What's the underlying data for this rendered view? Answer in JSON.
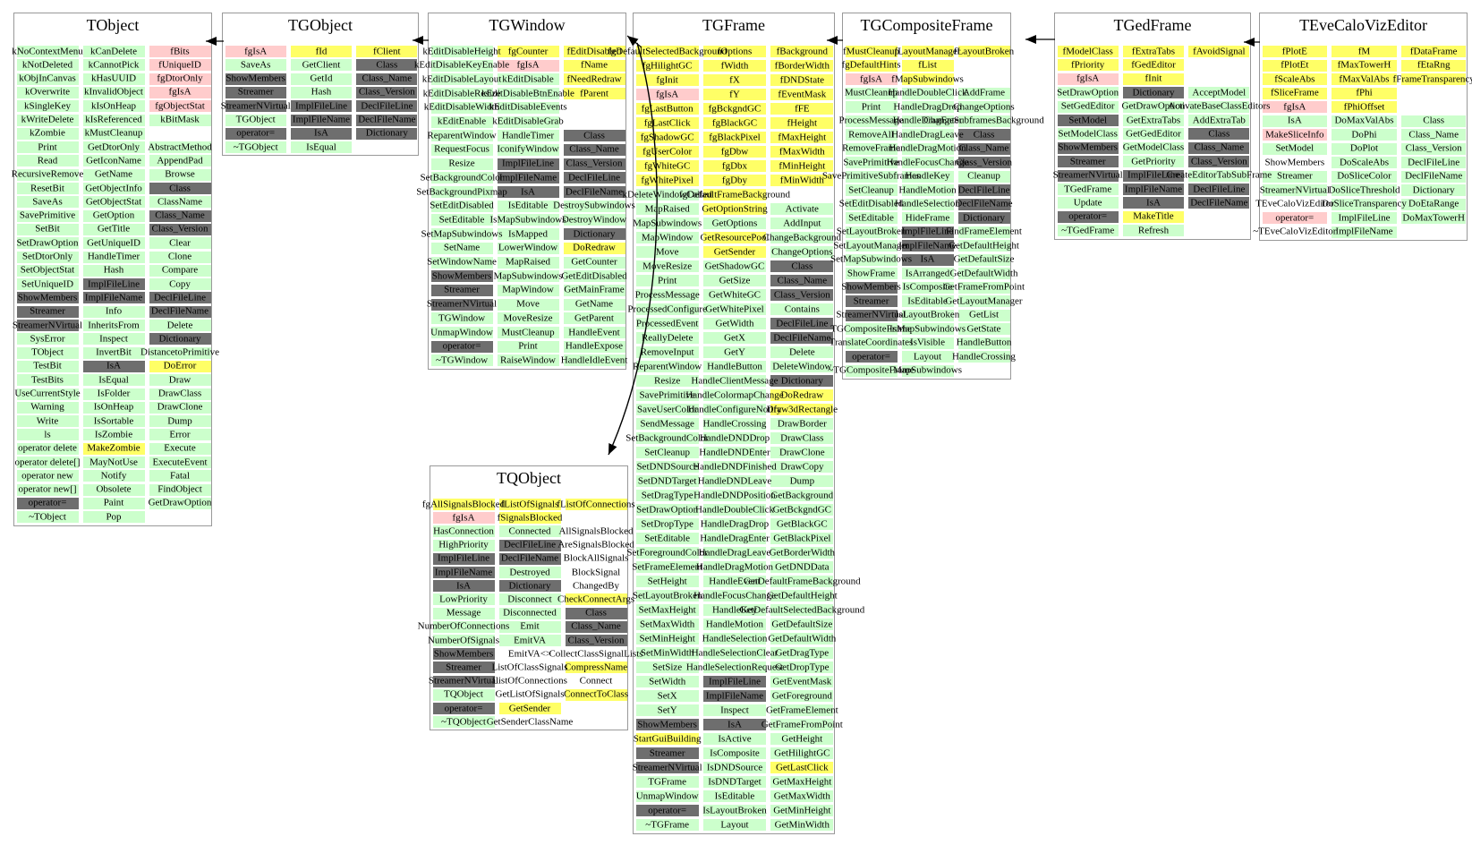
{
  "diagram": {
    "kind": "class-inheritance-diagram",
    "colors": {
      "g": "#ccffcc",
      "y": "#ffff66",
      "p": "#ffcccc",
      "d": "#6e6e6e",
      "w": "#ffffff"
    },
    "color_legend": {
      "g": "public member (light green)",
      "y": "data member / protected (yellow)",
      "p": "static private data (pink)",
      "d": "class-infrastructure method (dark gray)",
      "w": "plain (white)"
    },
    "inheritance": [
      {
        "from": "TGObject",
        "to": "TObject"
      },
      {
        "from": "TGWindow",
        "to": "TGObject"
      },
      {
        "from": "TGFrame",
        "to": "TGWindow"
      },
      {
        "from": "TGFrame",
        "to": "TQObject"
      },
      {
        "from": "TGCompositeFrame",
        "to": "TGFrame"
      },
      {
        "from": "TGedFrame",
        "to": "TGCompositeFrame"
      },
      {
        "from": "TEveCaloVizEditor",
        "to": "TGedFrame"
      }
    ],
    "classes": [
      {
        "name": "TObject",
        "columns": [
          [
            "kNoContextMenu|g",
            "kNotDeleted|g",
            "kObjInCanvas|g",
            "kOverwrite|g",
            "kSingleKey|g",
            "kWriteDelete|g",
            "kZombie|g",
            "Print|g",
            "Read|g",
            "RecursiveRemove|g",
            "ResetBit|g",
            "SaveAs|g",
            "SavePrimitive|g",
            "SetBit|g",
            "SetDrawOption|g",
            "SetDtorOnly|g",
            "SetObjectStat|g",
            "SetUniqueID|g",
            "ShowMembers|d",
            "Streamer|d",
            "StreamerNVirtual|d",
            "SysError|g",
            "TObject|g",
            "TestBit|g",
            "TestBits|g",
            "UseCurrentStyle|g",
            "Warning|g",
            "Write|g",
            "ls|g",
            "operator delete|g",
            "operator delete[]|g",
            "operator new|g",
            "operator new[]|g",
            "operator=|d",
            "~TObject|g"
          ],
          [
            "kCanDelete|g",
            "kCannotPick|g",
            "kHasUUID|g",
            "kInvalidObject|g",
            "kIsOnHeap|g",
            "kIsReferenced|g",
            "kMustCleanup|g",
            "GetDtorOnly|g",
            "GetIconName|g",
            "GetName|g",
            "GetObjectInfo|g",
            "GetObjectStat|g",
            "GetOption|g",
            "GetTitle|g",
            "GetUniqueID|g",
            "HandleTimer|g",
            "Hash|g",
            "ImplFileLine|d",
            "ImplFileName|d",
            "Info|g",
            "InheritsFrom|g",
            "Inspect|g",
            "InvertBit|g",
            "IsA|d",
            "IsEqual|g",
            "IsFolder|g",
            "IsOnHeap|g",
            "IsSortable|g",
            "IsZombie|g",
            "MakeZombie|y",
            "MayNotUse|g",
            "Notify|g",
            "Obsolete|g",
            "Paint|g",
            "Pop|g"
          ],
          [
            "fBits|p",
            "fUniqueID|p",
            "fgDtorOnly|p",
            "fgIsA|p",
            "fgObjectStat|p",
            "kBitMask|g",
            "",
            "AbstractMethod|g",
            "AppendPad|g",
            "Browse|g",
            "Class|d",
            "ClassName|g",
            "Class_Name|d",
            "Class_Version|d",
            "Clear|g",
            "Clone|g",
            "Compare|g",
            "Copy|g",
            "DeclFileLine|d",
            "DeclFileName|d",
            "Delete|g",
            "Dictionary|d",
            "DistancetoPrimitive|g",
            "DoError|y",
            "Draw|g",
            "DrawClass|g",
            "DrawClone|g",
            "Dump|g",
            "Error|g",
            "Execute|g",
            "ExecuteEvent|g",
            "Fatal|g",
            "FindObject|g",
            "GetDrawOption|g",
            ""
          ]
        ]
      },
      {
        "name": "TGObject",
        "columns": [
          [
            "fgIsA|p",
            "SaveAs|g",
            "ShowMembers|d",
            "Streamer|d",
            "StreamerNVirtual|d",
            "TGObject|g",
            "operator=|d",
            "~TGObject|g"
          ],
          [
            "fId|y",
            "GetClient|g",
            "GetId|g",
            "Hash|g",
            "ImplFileLine|d",
            "ImplFileName|d",
            "IsA|d",
            "IsEqual|g"
          ],
          [
            "fClient|y",
            "Class|d",
            "Class_Name|d",
            "Class_Version|d",
            "DeclFileLine|d",
            "DeclFileName|d",
            "Dictionary|d",
            ""
          ]
        ]
      },
      {
        "name": "TGWindow",
        "columns": [
          [
            "kEditDisableHeight|g",
            "kEditDisableKeyEnable|g",
            "kEditDisableLayout|g",
            "kEditDisableResize|g",
            "kEditDisableWidth|g",
            "kEditEnable|g",
            "ReparentWindow|g",
            "RequestFocus|g",
            "Resize|g",
            "SetBackgroundColor|g",
            "SetBackgroundPixmap|g",
            "SetEditDisabled|g",
            "SetEditable|g",
            "SetMapSubwindows|g",
            "SetName|g",
            "SetWindowName|g",
            "ShowMembers|d",
            "Streamer|d",
            "StreamerNVirtual|d",
            "TGWindow|g",
            "UnmapWindow|g",
            "operator=|d",
            "~TGWindow|g"
          ],
          [
            "fgCounter|y",
            "fgIsA|p",
            "kEditDisable|g",
            "kEditDisableBtnEnable|g",
            "kEditDisableEvents|g",
            "kEditDisableGrab|g",
            "HandleTimer|g",
            "IconifyWindow|g",
            "ImplFileLine|d",
            "ImplFileName|d",
            "IsA|d",
            "IsEditable|g",
            "IsMapSubwindows|g",
            "IsMapped|g",
            "LowerWindow|g",
            "MapRaised|g",
            "MapSubwindows|g",
            "MapWindow|g",
            "Move|g",
            "MoveResize|g",
            "MustCleanup|g",
            "Print|g",
            "RaiseWindow|g"
          ],
          [
            "fEditDisabled|y",
            "fName|y",
            "fNeedRedraw|y",
            "fParent|y",
            "",
            "",
            "Class|d",
            "Class_Name|d",
            "Class_Version|d",
            "DeclFileLine|d",
            "DeclFileName|d",
            "DestroySubwindows|g",
            "DestroyWindow|g",
            "Dictionary|d",
            "DoRedraw|y",
            "GetCounter|g",
            "GetEditDisabled|g",
            "GetMainFrame|g",
            "GetName|g",
            "GetParent|g",
            "HandleEvent|g",
            "HandleExpose|g",
            "HandleIdleEvent|g"
          ]
        ]
      },
      {
        "name": "TGFrame",
        "columns": [
          [
            "fgDefaultSelectedBackground|y",
            "fgHilightGC|y",
            "fgInit|y",
            "fgIsA|p",
            "fgLastButton|y",
            "fgLastClick|y",
            "fgShadowGC|y",
            "fgUserColor|y",
            "fgWhiteGC|y",
            "fgWhitePixel|y",
            "kDeleteWindowCalled|g",
            "MapRaised|g",
            "MapSubwindows|g",
            "MapWindow|g",
            "Move|g",
            "MoveResize|g",
            "Print|g",
            "ProcessMessage|g",
            "ProcessedConfigure|g",
            "ProcessedEvent|g",
            "ReallyDelete|g",
            "RemoveInput|g",
            "ReparentWindow|g",
            "Resize|g",
            "SavePrimitive|g",
            "SaveUserColor|g",
            "SendMessage|g",
            "SetBackgroundColor|g",
            "SetCleanup|g",
            "SetDNDSource|g",
            "SetDNDTarget|g",
            "SetDragType|g",
            "SetDrawOption|g",
            "SetDropType|g",
            "SetEditable|g",
            "SetForegroundColor|g",
            "SetFrameElement|g",
            "SetHeight|g",
            "SetLayoutBroken|g",
            "SetMaxHeight|g",
            "SetMaxWidth|g",
            "SetMinHeight|g",
            "SetMinWidth|g",
            "SetSize|g",
            "SetWidth|g",
            "SetX|g",
            "SetY|g",
            "ShowMembers|d",
            "StartGuiBuilding|y",
            "Streamer|d",
            "StreamerNVirtual|d",
            "TGFrame|g",
            "UnmapWindow|g",
            "operator=|d",
            "~TGFrame|g"
          ],
          [
            "fOptions|y",
            "fWidth|y",
            "fX|y",
            "fY|y",
            "fgBckgndGC|y",
            "fgBlackGC|y",
            "fgBlackPixel|y",
            "fgDbw|y",
            "fgDbx|y",
            "fgDby|y",
            "fgDefaultFrameBackground|y",
            "GetOptionString|y",
            "GetOptions|g",
            "GetResourcePool|y",
            "GetSender|y",
            "GetShadowGC|g",
            "GetSize|g",
            "GetWhiteGC|g",
            "GetWhitePixel|g",
            "GetWidth|g",
            "GetX|g",
            "GetY|g",
            "HandleButton|g",
            "HandleClientMessage|g",
            "HandleColormapChange|g",
            "HandleConfigureNotify|g",
            "HandleCrossing|g",
            "HandleDNDDrop|g",
            "HandleDNDEnter|g",
            "HandleDNDFinished|g",
            "HandleDNDLeave|g",
            "HandleDNDPosition|g",
            "HandleDoubleClick|g",
            "HandleDragDrop|g",
            "HandleDragEnter|g",
            "HandleDragLeave|g",
            "HandleDragMotion|g",
            "HandleEvent|g",
            "HandleFocusChange|g",
            "HandleKey|g",
            "HandleMotion|g",
            "HandleSelection|g",
            "HandleSelectionClear|g",
            "HandleSelectionRequest|g",
            "ImplFileLine|d",
            "ImplFileName|d",
            "Inspect|g",
            "IsA|d",
            "IsActive|g",
            "IsComposite|g",
            "IsDNDSource|g",
            "IsDNDTarget|g",
            "IsEditable|g",
            "IsLayoutBroken|g",
            "Layout|g"
          ],
          [
            "fBackground|y",
            "fBorderWidth|y",
            "fDNDState|y",
            "fEventMask|y",
            "fFE|y",
            "fHeight|y",
            "fMaxHeight|y",
            "fMaxWidth|y",
            "fMinHeight|y",
            "fMinWidth|y",
            "",
            "Activate|g",
            "AddInput|g",
            "ChangeBackground|g",
            "ChangeOptions|g",
            "Class|d",
            "Class_Name|d",
            "Class_Version|d",
            "Contains|g",
            "DeclFileLine|d",
            "DeclFileName|d",
            "Delete|g",
            "DeleteWindow|g",
            "Dictionary|d",
            "DoRedraw|y",
            "Draw3dRectangle|y",
            "DrawBorder|g",
            "DrawClass|g",
            "DrawClone|g",
            "DrawCopy|g",
            "Dump|g",
            "GetBackground|g",
            "GetBckgndGC|g",
            "GetBlackGC|g",
            "GetBlackPixel|g",
            "GetBorderWidth|g",
            "GetDNDData|g",
            "GetDefaultFrameBackground|g",
            "GetDefaultHeight|g",
            "GetDefaultSelectedBackground|g",
            "GetDefaultSize|g",
            "GetDefaultWidth|g",
            "GetDragType|g",
            "GetDropType|g",
            "GetEventMask|g",
            "GetForeground|g",
            "GetFrameElement|g",
            "GetFrameFromPoint|g",
            "GetHeight|g",
            "GetHilightGC|g",
            "GetLastClick|y",
            "GetMaxHeight|g",
            "GetMaxWidth|g",
            "GetMinHeight|g",
            "GetMinWidth|g"
          ]
        ]
      },
      {
        "name": "TGCompositeFrame",
        "columns": [
          [
            "fMustCleanup|y",
            "fgDefaultHints|y",
            "fgIsA|p",
            "MustCleanup|g",
            "Print|g",
            "ProcessMessage|g",
            "RemoveAll|g",
            "RemoveFrame|g",
            "SavePrimitive|g",
            "SavePrimitiveSubframes|g",
            "SetCleanup|g",
            "SetEditDisabled|g",
            "SetEditable|g",
            "SetLayoutBroken|g",
            "SetLayoutManager|g",
            "SetMapSubwindows|g",
            "ShowFrame|g",
            "ShowMembers|d",
            "Streamer|d",
            "StreamerNVirtual|d",
            "TGCompositeFrame|g",
            "TranslateCoordinates|g",
            "operator=|d",
            "~TGCompositeFrame|g"
          ],
          [
            "fLayoutManager|y",
            "fList|y",
            "fMapSubwindows|y",
            "HandleDoubleClick|g",
            "HandleDragDrop|g",
            "HandleDragEnter|g",
            "HandleDragLeave|g",
            "HandleDragMotion|g",
            "HandleFocusChange|g",
            "HandleKey|g",
            "HandleMotion|g",
            "HandleSelection|g",
            "HideFrame|g",
            "ImplFileLine|d",
            "ImplFileName|d",
            "IsA|d",
            "IsArranged|g",
            "IsComposite|g",
            "IsEditable|g",
            "IsLayoutBroken|g",
            "IsMapSubwindows|g",
            "IsVisible|g",
            "Layout|g",
            "MapSubwindows|g"
          ],
          [
            "fLayoutBroken|y",
            "",
            "",
            "AddFrame|g",
            "ChangeOptions|g",
            "ChangeSubframesBackground|g",
            "Class|d",
            "Class_Name|d",
            "Class_Version|d",
            "Cleanup|g",
            "DeclFileLine|d",
            "DeclFileName|d",
            "Dictionary|d",
            "FindFrameElement|g",
            "GetDefaultHeight|g",
            "GetDefaultSize|g",
            "GetDefaultWidth|g",
            "GetFrameFromPoint|g",
            "GetLayoutManager|g",
            "GetList|g",
            "GetState|g",
            "HandleButton|g",
            "HandleCrossing|g",
            ""
          ]
        ]
      },
      {
        "name": "TGedFrame",
        "columns": [
          [
            "fModelClass|y",
            "fPriority|y",
            "fgIsA|p",
            "SetDrawOption|g",
            "SetGedEditor|g",
            "SetModel|d",
            "SetModelClass|g",
            "ShowMembers|d",
            "Streamer|d",
            "StreamerNVirtual|d",
            "TGedFrame|g",
            "Update|g",
            "operator=|d",
            "~TGedFrame|g"
          ],
          [
            "fExtraTabs|y",
            "fGedEditor|y",
            "fInit|y",
            "Dictionary|d",
            "GetDrawOption|g",
            "GetExtraTabs|g",
            "GetGedEditor|g",
            "GetModelClass|g",
            "GetPriority|g",
            "ImplFileLine|d",
            "ImplFileName|d",
            "IsA|d",
            "MakeTitle|y",
            "Refresh|g"
          ],
          [
            "fAvoidSignal|y",
            "",
            "",
            "AcceptModel|g",
            "ActivateBaseClassEditors|g",
            "AddExtraTab|g",
            "Class|d",
            "Class_Name|d",
            "Class_Version|d",
            "CreateEditorTabSubFrame|g",
            "DeclFileLine|d",
            "DeclFileName|d",
            "",
            ""
          ]
        ]
      },
      {
        "name": "TEveCaloVizEditor",
        "columns": [
          [
            "fPlotE|y",
            "fPlotEt|y",
            "fScaleAbs|y",
            "fSliceFrame|y",
            "fgIsA|p",
            "IsA|g",
            "MakeSliceInfo|p",
            "SetModel|g",
            "ShowMembers|w",
            "Streamer|g",
            "StreamerNVirtual|g",
            "TEveCaloVizEditor|w",
            "operator=|p",
            "~TEveCaloVizEditor|w"
          ],
          [
            "fM|y",
            "fMaxTowerH|y",
            "fMaxValAbs|y",
            "fPhi|y",
            "fPhiOffset|y",
            "DoMaxValAbs|g",
            "DoPhi|g",
            "DoPlot|g",
            "DoScaleAbs|g",
            "DoSliceColor|g",
            "DoSliceThreshold|g",
            "DoSliceTransparency|g",
            "ImplFileLine|g",
            "ImplFileName|g"
          ],
          [
            "fDataFrame|y",
            "fEtaRng|y",
            "fFrameTransparency|y",
            "",
            "",
            "Class|g",
            "Class_Name|g",
            "Class_Version|g",
            "DeclFileLine|g",
            "DeclFileName|g",
            "Dictionary|g",
            "DoEtaRange|g",
            "DoMaxTowerH|g",
            ""
          ]
        ]
      },
      {
        "name": "TQObject",
        "columns": [
          [
            "fgAllSignalsBlocked|y",
            "fgIsA|p",
            "HasConnection|g",
            "HighPriority|g",
            "ImplFileLine|d",
            "ImplFileName|d",
            "IsA|d",
            "LowPriority|g",
            "Message|g",
            "NumberOfConnections|g",
            "NumberOfSignals|g",
            "ShowMembers|d",
            "Streamer|d",
            "StreamerNVirtual|d",
            "TQObject|g",
            "operator=|d",
            "~TQObject|g"
          ],
          [
            "fListOfSignals|y",
            "fSignalsBlocked|y",
            "Connected|g",
            "DeclFileLine|d",
            "DeclFileName|d",
            "Destroyed|g",
            "Dictionary|d",
            "Disconnect|g",
            "Disconnected|g",
            "Emit|g",
            "EmitVA|g",
            "EmitVA<>|w",
            "ListOfClassSignals|w",
            "ListOfConnections|w",
            "GetListOfSignals|w",
            "GetSender|y",
            "GetSenderClassName|w"
          ],
          [
            "fListOfConnections|y",
            "",
            "AllSignalsBlocked|w",
            "AreSignalsBlocked|w",
            "BlockAllSignals|w",
            "BlockSignal|w",
            "ChangedBy|w",
            "CheckConnectArgs|y",
            "Class|d",
            "Class_Name|d",
            "Class_Version|d",
            "CollectClassSignalLists|w",
            "CompressName|y",
            "Connect|w",
            "ConnectToClass|y",
            "",
            ""
          ]
        ]
      }
    ]
  }
}
